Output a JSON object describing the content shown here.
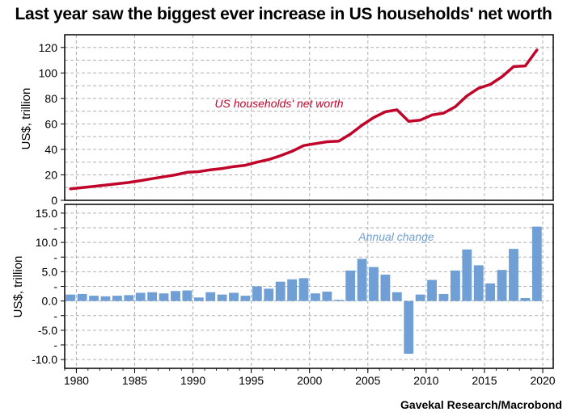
{
  "title": "Last year saw the biggest ever increase in US households' net worth",
  "source": "Gavekal Research/Macrobond",
  "colors": {
    "line": "#c0042a",
    "bar": "#6f9fd5",
    "bar_label": "#6f9fd5",
    "grid": "#b0b0b0"
  },
  "chart_data": [
    {
      "type": "line",
      "title": "US households' net worth",
      "series_label": "US households' net worth",
      "ylabel": "US$, trillion",
      "xlim": [
        1979,
        2020.9
      ],
      "ylim": [
        0,
        130
      ],
      "yticks": [
        0,
        20,
        40,
        60,
        80,
        100,
        120
      ],
      "ytick_labels": [
        "0",
        "20",
        "40",
        "60",
        "80",
        "100",
        "120"
      ],
      "x": [
        1979.5,
        1980.5,
        1981.5,
        1982.5,
        1983.5,
        1984.5,
        1985.5,
        1986.5,
        1987.5,
        1988.5,
        1989.5,
        1990.5,
        1991.5,
        1992.5,
        1993.5,
        1994.5,
        1995.5,
        1996.5,
        1997.5,
        1998.5,
        1999.5,
        2000.5,
        2001.5,
        2002.5,
        2003.5,
        2004.5,
        2005.5,
        2006.5,
        2007.5,
        2008.5,
        2009.5,
        2010.5,
        2011.5,
        2012.5,
        2013.5,
        2014.5,
        2015.5,
        2016.5,
        2017.5,
        2018.5,
        2019.5
      ],
      "values": [
        9,
        10,
        11,
        12,
        13,
        14,
        15.5,
        17,
        18.5,
        20,
        22,
        22.5,
        24,
        25,
        26.5,
        27.5,
        30,
        32,
        35,
        38.5,
        43,
        44.5,
        46,
        46.5,
        52,
        59,
        65,
        69.5,
        71,
        62,
        63,
        67,
        68.5,
        73.5,
        82,
        88,
        91,
        97,
        105,
        105.5,
        118
      ]
    },
    {
      "type": "bar",
      "title": "Annual change",
      "series_label": "Annual change",
      "ylabel": "US$, trillion",
      "xlabel": "",
      "xlim": [
        1979,
        2020.9
      ],
      "ylim": [
        -11.5,
        16.5
      ],
      "yticks": [
        -10,
        -7.5,
        -5,
        -2.5,
        0,
        2.5,
        5,
        7.5,
        10,
        12.5,
        15
      ],
      "ytick_labels": [
        "-10.0",
        "-",
        "-5.0",
        "-",
        "0.0",
        "-",
        "5.0",
        "-",
        "10.0",
        "-",
        "15.0"
      ],
      "xticks": [
        1980,
        1985,
        1990,
        1995,
        2000,
        2005,
        2010,
        2015,
        2020
      ],
      "xtick_labels": [
        "1980",
        "1985",
        "1990",
        "1995",
        "2000",
        "2005",
        "2010",
        "2015",
        "2020"
      ],
      "x": [
        1979.5,
        1980.5,
        1981.5,
        1982.5,
        1983.5,
        1984.5,
        1985.5,
        1986.5,
        1987.5,
        1988.5,
        1989.5,
        1990.5,
        1991.5,
        1992.5,
        1993.5,
        1994.5,
        1995.5,
        1996.5,
        1997.5,
        1998.5,
        1999.5,
        2000.5,
        2001.5,
        2002.5,
        2003.5,
        2004.5,
        2005.5,
        2006.5,
        2007.5,
        2008.5,
        2009.5,
        2010.5,
        2011.5,
        2012.5,
        2013.5,
        2014.5,
        2015.5,
        2016.5,
        2017.5,
        2018.5,
        2019.5
      ],
      "values": [
        1.1,
        1.2,
        0.9,
        0.8,
        0.9,
        1.0,
        1.4,
        1.5,
        1.3,
        1.7,
        1.8,
        0.6,
        1.5,
        1.1,
        1.4,
        0.9,
        2.5,
        2.1,
        3.3,
        3.7,
        3.9,
        1.3,
        1.6,
        0.2,
        5.2,
        7.2,
        5.8,
        4.5,
        1.5,
        -9.0,
        1.1,
        3.6,
        1.2,
        5.2,
        8.8,
        6.1,
        3.0,
        5.3,
        8.9,
        0.5,
        12.7
      ]
    }
  ]
}
